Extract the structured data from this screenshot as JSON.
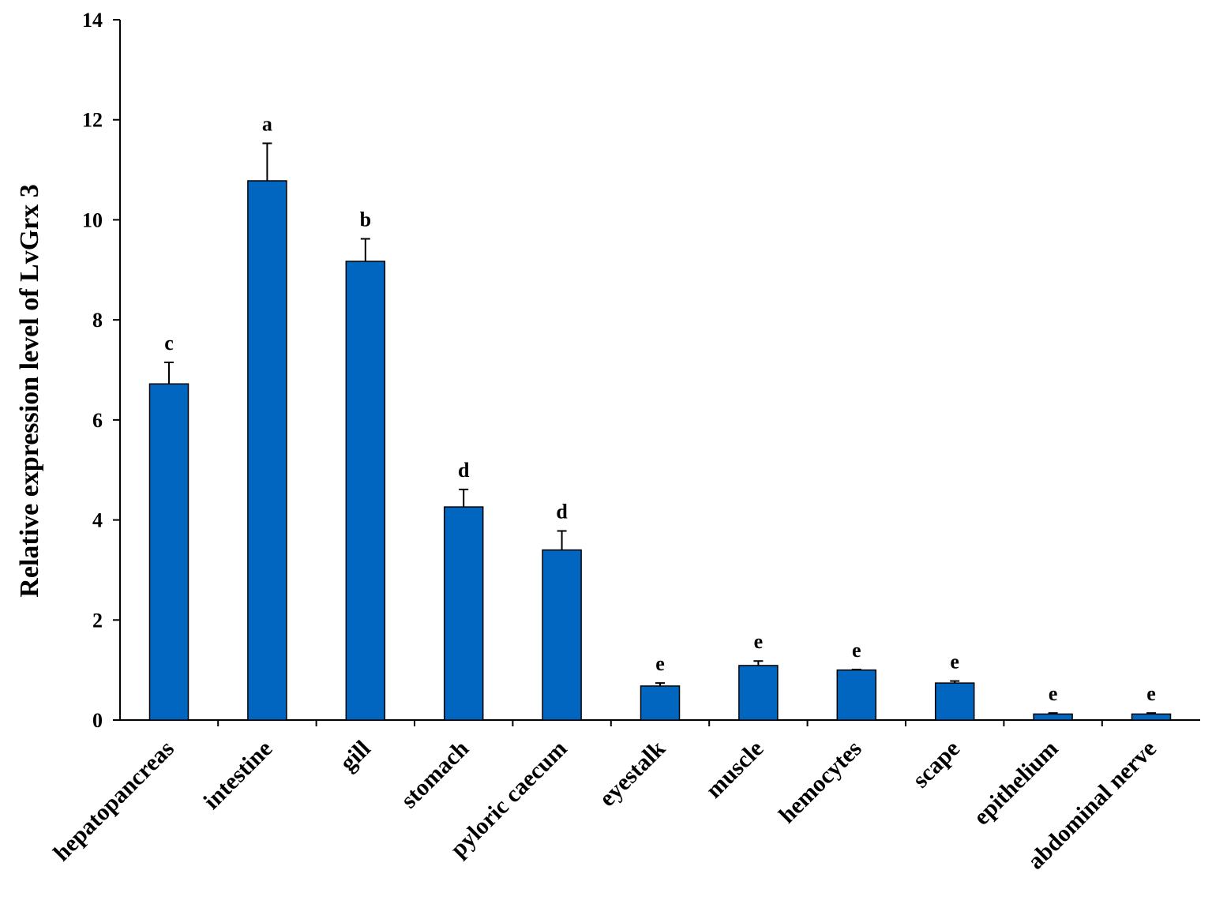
{
  "chart_data": {
    "type": "bar",
    "title": "",
    "xlabel": "",
    "ylabel": "Relative expression level of  LvGrx 3",
    "ylim": [
      0,
      14
    ],
    "yticks": [
      0,
      2,
      4,
      6,
      8,
      10,
      12,
      14
    ],
    "grid": false,
    "legend": "none",
    "bar_color": "#0066BF",
    "categories": [
      "hepatopancreas",
      "intestine",
      "gill",
      "stomach",
      "pyloric caecum",
      "eyestalk",
      "muscle",
      "hemocytes",
      "scape",
      "epithelium",
      "abdominal nerve"
    ],
    "values": [
      6.72,
      10.78,
      9.17,
      4.26,
      3.4,
      0.68,
      1.09,
      1.0,
      0.74,
      0.12,
      0.12
    ],
    "errors": [
      0.43,
      0.75,
      0.45,
      0.35,
      0.38,
      0.06,
      0.09,
      0.01,
      0.04,
      0.02,
      0.02
    ],
    "significance": [
      "c",
      "a",
      "b",
      "d",
      "d",
      "e",
      "e",
      "e",
      "e",
      "e",
      "e"
    ]
  }
}
